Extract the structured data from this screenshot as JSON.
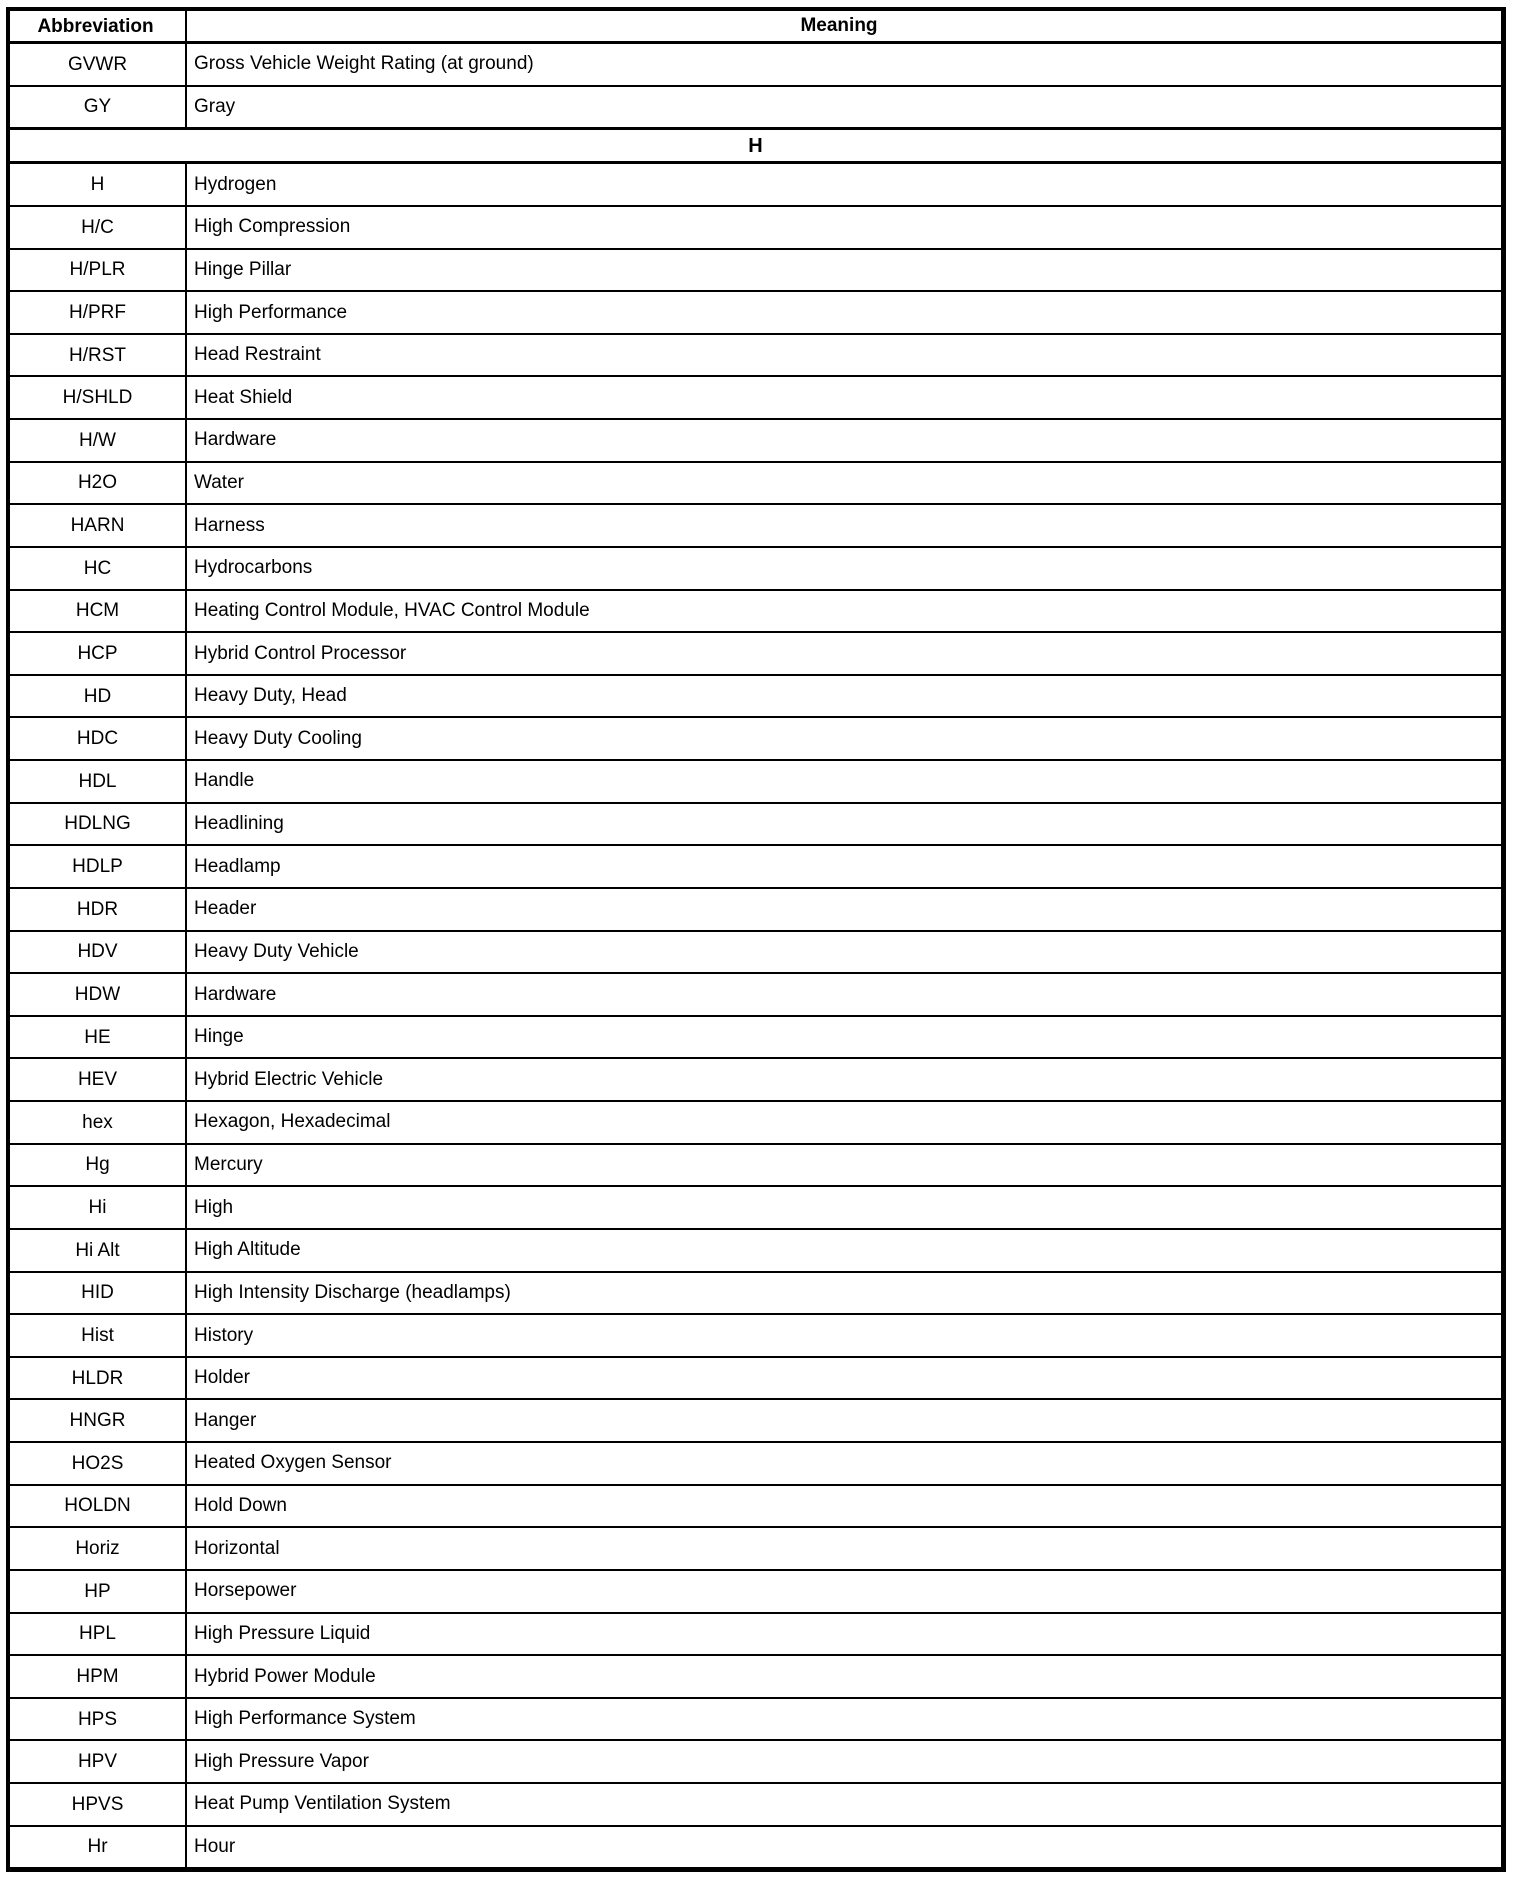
{
  "table": {
    "columns": [
      "Abbreviation",
      "Meaning"
    ],
    "rows": [
      {
        "abbr": "GVWR",
        "meaning": "Gross Vehicle Weight Rating (at ground)"
      },
      {
        "abbr": "GY",
        "meaning": "Gray"
      },
      {
        "section": "H"
      },
      {
        "abbr": "H",
        "meaning": "Hydrogen"
      },
      {
        "abbr": "H/C",
        "meaning": "High Compression"
      },
      {
        "abbr": "H/PLR",
        "meaning": "Hinge Pillar"
      },
      {
        "abbr": "H/PRF",
        "meaning": "High Performance"
      },
      {
        "abbr": "H/RST",
        "meaning": "Head Restraint"
      },
      {
        "abbr": "H/SHLD",
        "meaning": "Heat Shield"
      },
      {
        "abbr": "H/W",
        "meaning": "Hardware"
      },
      {
        "abbr": "H2O",
        "meaning": "Water"
      },
      {
        "abbr": "HARN",
        "meaning": "Harness"
      },
      {
        "abbr": "HC",
        "meaning": "Hydrocarbons"
      },
      {
        "abbr": "HCM",
        "meaning": "Heating Control Module, HVAC Control Module"
      },
      {
        "abbr": "HCP",
        "meaning": "Hybrid Control Processor"
      },
      {
        "abbr": "HD",
        "meaning": "Heavy Duty, Head"
      },
      {
        "abbr": "HDC",
        "meaning": "Heavy Duty Cooling"
      },
      {
        "abbr": "HDL",
        "meaning": "Handle"
      },
      {
        "abbr": "HDLNG",
        "meaning": "Headlining"
      },
      {
        "abbr": "HDLP",
        "meaning": "Headlamp"
      },
      {
        "abbr": "HDR",
        "meaning": "Header"
      },
      {
        "abbr": "HDV",
        "meaning": "Heavy Duty Vehicle"
      },
      {
        "abbr": "HDW",
        "meaning": "Hardware"
      },
      {
        "abbr": "HE",
        "meaning": "Hinge"
      },
      {
        "abbr": "HEV",
        "meaning": "Hybrid Electric Vehicle"
      },
      {
        "abbr": "hex",
        "meaning": "Hexagon, Hexadecimal"
      },
      {
        "abbr": "Hg",
        "meaning": "Mercury"
      },
      {
        "abbr": "Hi",
        "meaning": "High"
      },
      {
        "abbr": "Hi Alt",
        "meaning": "High Altitude"
      },
      {
        "abbr": "HID",
        "meaning": "High Intensity Discharge (headlamps)"
      },
      {
        "abbr": "Hist",
        "meaning": "History"
      },
      {
        "abbr": "HLDR",
        "meaning": "Holder"
      },
      {
        "abbr": "HNGR",
        "meaning": "Hanger"
      },
      {
        "abbr": "HO2S",
        "meaning": "Heated Oxygen Sensor"
      },
      {
        "abbr": "HOLDN",
        "meaning": "Hold Down"
      },
      {
        "abbr": "Horiz",
        "meaning": "Horizontal"
      },
      {
        "abbr": "HP",
        "meaning": "Horsepower"
      },
      {
        "abbr": "HPL",
        "meaning": "High Pressure Liquid"
      },
      {
        "abbr": "HPM",
        "meaning": "Hybrid Power Module"
      },
      {
        "abbr": "HPS",
        "meaning": "High Performance System"
      },
      {
        "abbr": "HPV",
        "meaning": "High Pressure Vapor"
      },
      {
        "abbr": "HPVS",
        "meaning": "Heat Pump Ventilation System"
      },
      {
        "abbr": "Hr",
        "meaning": "Hour"
      }
    ]
  }
}
